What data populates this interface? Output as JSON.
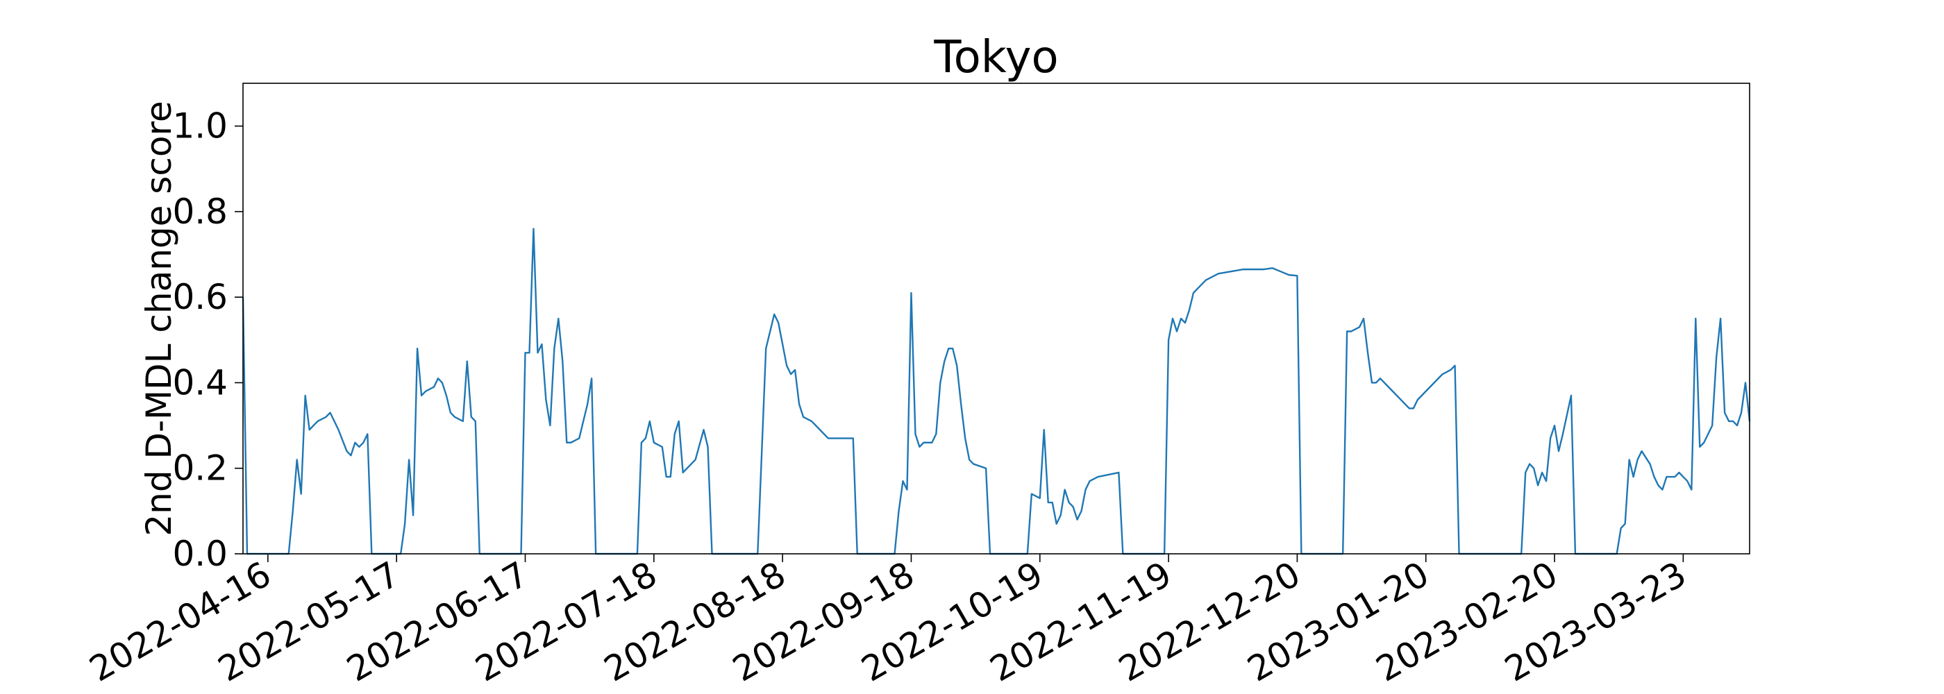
{
  "chart_data": {
    "type": "line",
    "title": "Tokyo",
    "y_label": "2nd D-MDL change score",
    "color": "#1f77b4",
    "grid": false,
    "xlim": [
      "2022-04-10",
      "2023-04-08"
    ],
    "ylim": [
      0,
      1.1
    ],
    "xticks": [
      "2022-04-16",
      "2022-05-17",
      "2022-06-17",
      "2022-07-18",
      "2022-08-18",
      "2022-09-18",
      "2022-10-19",
      "2022-11-19",
      "2022-12-20",
      "2023-01-20",
      "2023-02-20",
      "2023-03-23"
    ],
    "yticks": [
      {
        "value": 0,
        "label": "0.0"
      },
      0.2,
      0.4,
      0.6,
      0.8,
      {
        "value": 1,
        "label": "1.0"
      }
    ],
    "x": [
      "2022-04-10",
      "2022-04-11",
      "2022-04-21",
      "2022-04-22",
      "2022-04-23",
      "2022-04-24",
      "2022-04-25",
      "2022-04-26",
      "2022-04-28",
      "2022-04-30",
      "2022-05-01",
      "2022-05-03",
      "2022-05-05",
      "2022-05-06",
      "2022-05-07",
      "2022-05-08",
      "2022-05-09",
      "2022-05-10",
      "2022-05-11",
      "2022-05-18",
      "2022-05-19",
      "2022-05-20",
      "2022-05-21",
      "2022-05-22",
      "2022-05-23",
      "2022-05-24",
      "2022-05-26",
      "2022-05-27",
      "2022-05-28",
      "2022-05-29",
      "2022-05-30",
      "2022-05-31",
      "2022-06-02",
      "2022-06-03",
      "2022-06-04",
      "2022-06-05",
      "2022-06-06",
      "2022-06-16",
      "2022-06-17",
      "2022-06-18",
      "2022-06-19",
      "2022-06-20",
      "2022-06-21",
      "2022-06-22",
      "2022-06-23",
      "2022-06-24",
      "2022-06-25",
      "2022-06-26",
      "2022-06-27",
      "2022-06-28",
      "2022-06-30",
      "2022-07-02",
      "2022-07-03",
      "2022-07-04",
      "2022-07-14",
      "2022-07-15",
      "2022-07-16",
      "2022-07-17",
      "2022-07-18",
      "2022-07-20",
      "2022-07-21",
      "2022-07-22",
      "2022-07-23",
      "2022-07-24",
      "2022-07-25",
      "2022-07-27",
      "2022-07-28",
      "2022-07-30",
      "2022-07-31",
      "2022-08-01",
      "2022-08-12",
      "2022-08-14",
      "2022-08-16",
      "2022-08-17",
      "2022-08-19",
      "2022-08-20",
      "2022-08-21",
      "2022-08-22",
      "2022-08-23",
      "2022-08-25",
      "2022-08-27",
      "2022-08-29",
      "2022-09-04",
      "2022-09-05",
      "2022-09-14",
      "2022-09-15",
      "2022-09-16",
      "2022-09-17",
      "2022-09-18",
      "2022-09-19",
      "2022-09-20",
      "2022-09-21",
      "2022-09-23",
      "2022-09-24",
      "2022-09-25",
      "2022-09-26",
      "2022-09-27",
      "2022-09-28",
      "2022-09-29",
      "2022-09-30",
      "2022-10-01",
      "2022-10-02",
      "2022-10-03",
      "2022-10-06",
      "2022-10-07",
      "2022-10-16",
      "2022-10-17",
      "2022-10-19",
      "2022-10-20",
      "2022-10-21",
      "2022-10-22",
      "2022-10-23",
      "2022-10-24",
      "2022-10-25",
      "2022-10-26",
      "2022-10-27",
      "2022-10-28",
      "2022-10-29",
      "2022-10-30",
      "2022-10-31",
      "2022-11-02",
      "2022-11-07",
      "2022-11-08",
      "2022-11-18",
      "2022-11-19",
      "2022-11-20",
      "2022-11-21",
      "2022-11-22",
      "2022-11-23",
      "2022-11-24",
      "2022-11-25",
      "2022-11-26",
      "2022-11-28",
      "2022-12-01",
      "2022-12-07",
      "2022-12-12",
      "2022-12-14",
      "2022-12-16",
      "2022-12-18",
      "2022-12-20",
      "2022-12-21",
      "2022-12-31",
      "2023-01-01",
      "2023-01-02",
      "2023-01-04",
      "2023-01-05",
      "2023-01-06",
      "2023-01-07",
      "2023-01-08",
      "2023-01-09",
      "2023-01-11",
      "2023-01-16",
      "2023-01-17",
      "2023-01-18",
      "2023-01-24",
      "2023-01-26",
      "2023-01-27",
      "2023-01-28",
      "2023-02-12",
      "2023-02-13",
      "2023-02-14",
      "2023-02-15",
      "2023-02-16",
      "2023-02-17",
      "2023-02-18",
      "2023-02-19",
      "2023-02-20",
      "2023-02-21",
      "2023-02-22",
      "2023-02-24",
      "2023-02-25",
      "2023-03-07",
      "2023-03-08",
      "2023-03-09",
      "2023-03-10",
      "2023-03-11",
      "2023-03-12",
      "2023-03-13",
      "2023-03-15",
      "2023-03-16",
      "2023-03-17",
      "2023-03-18",
      "2023-03-19",
      "2023-03-21",
      "2023-03-22",
      "2023-03-23",
      "2023-03-24",
      "2023-03-25",
      "2023-03-26",
      "2023-03-27",
      "2023-03-28",
      "2023-03-30",
      "2023-03-31",
      "2023-04-01",
      "2023-04-02",
      "2023-04-03",
      "2023-04-04",
      "2023-04-05",
      "2023-04-06",
      "2023-04-07",
      "2023-04-08"
    ],
    "values": [
      0.6,
      0,
      0,
      0.1,
      0.22,
      0.14,
      0.37,
      0.29,
      0.31,
      0.32,
      0.33,
      0.29,
      0.24,
      0.23,
      0.26,
      0.25,
      0.26,
      0.28,
      0,
      0,
      0.07,
      0.22,
      0.09,
      0.48,
      0.37,
      0.38,
      0.39,
      0.41,
      0.4,
      0.37,
      0.33,
      0.32,
      0.31,
      0.45,
      0.32,
      0.31,
      0,
      0,
      0.47,
      0.47,
      0.76,
      0.47,
      0.49,
      0.36,
      0.3,
      0.48,
      0.55,
      0.45,
      0.26,
      0.26,
      0.27,
      0.35,
      0.41,
      0,
      0,
      0.26,
      0.27,
      0.31,
      0.26,
      0.25,
      0.18,
      0.18,
      0.28,
      0.31,
      0.19,
      0.21,
      0.22,
      0.29,
      0.25,
      0,
      0,
      0.48,
      0.56,
      0.54,
      0.44,
      0.42,
      0.43,
      0.35,
      0.32,
      0.31,
      0.29,
      0.27,
      0.27,
      0,
      0,
      0.1,
      0.17,
      0.15,
      0.61,
      0.28,
      0.25,
      0.26,
      0.26,
      0.28,
      0.4,
      0.45,
      0.48,
      0.48,
      0.44,
      0.35,
      0.27,
      0.22,
      0.21,
      0.2,
      0,
      0,
      0.14,
      0.13,
      0.29,
      0.12,
      0.12,
      0.07,
      0.09,
      0.15,
      0.12,
      0.11,
      0.08,
      0.1,
      0.15,
      0.17,
      0.18,
      0.19,
      0,
      0,
      0.5,
      0.55,
      0.52,
      0.55,
      0.54,
      0.57,
      0.61,
      0.62,
      0.64,
      0.655,
      0.665,
      0.665,
      0.668,
      0.66,
      0.652,
      0.65,
      0,
      0,
      0.52,
      0.52,
      0.53,
      0.55,
      0.47,
      0.4,
      0.4,
      0.41,
      0.39,
      0.34,
      0.34,
      0.36,
      0.42,
      0.43,
      0.44,
      0,
      0,
      0.19,
      0.21,
      0.2,
      0.16,
      0.19,
      0.17,
      0.27,
      0.3,
      0.24,
      0.28,
      0.37,
      0,
      0,
      0.06,
      0.07,
      0.22,
      0.18,
      0.22,
      0.24,
      0.21,
      0.18,
      0.16,
      0.15,
      0.18,
      0.18,
      0.19,
      0.18,
      0.17,
      0.15,
      0.55,
      0.25,
      0.26,
      0.3,
      0.46,
      0.55,
      0.33,
      0.31,
      0.31,
      0.3,
      0.33,
      0.4,
      0.31
    ]
  }
}
